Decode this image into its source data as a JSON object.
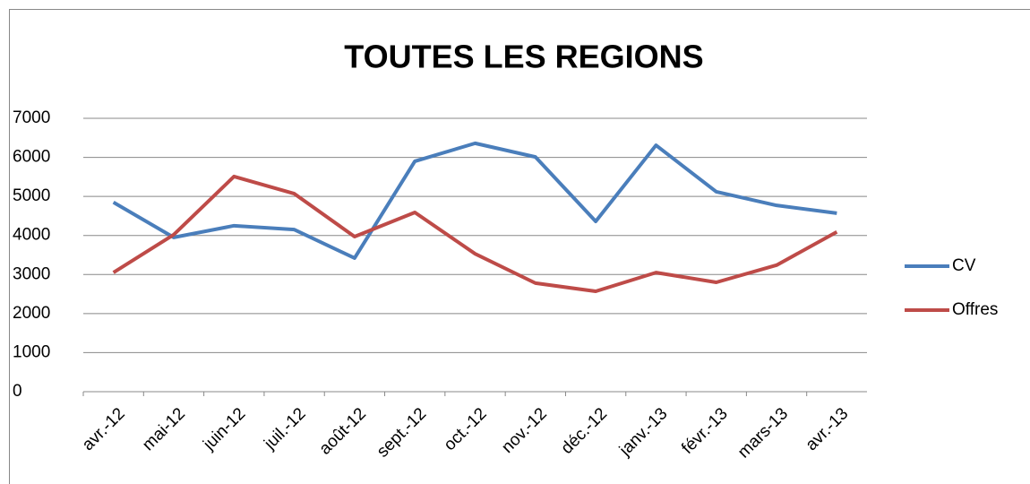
{
  "chart_data": {
    "type": "line",
    "title": "TOUTES LES REGIONS",
    "categories": [
      "avr.-12",
      "mai-12",
      "juin-12",
      "juil.-12",
      "août-12",
      "sept.-12",
      "oct.-12",
      "nov.-12",
      "déc.-12",
      "janv.-13",
      "févr.-13",
      "mars-13",
      "avr.-13"
    ],
    "series": [
      {
        "name": "CV",
        "color": "#4a7ebb",
        "values": [
          4850,
          3950,
          4250,
          4150,
          3420,
          5900,
          6360,
          6010,
          4360,
          6310,
          5120,
          4770,
          4570
        ]
      },
      {
        "name": "Offres",
        "color": "#be4b48",
        "values": [
          3050,
          4020,
          5510,
          5070,
          3970,
          4590,
          3530,
          2780,
          2570,
          3050,
          2800,
          3240,
          4090
        ]
      }
    ],
    "ylim": [
      0,
      7000
    ],
    "yticks": [
      0,
      1000,
      2000,
      3000,
      4000,
      5000,
      6000,
      7000
    ],
    "grid": true,
    "legend": "right"
  }
}
